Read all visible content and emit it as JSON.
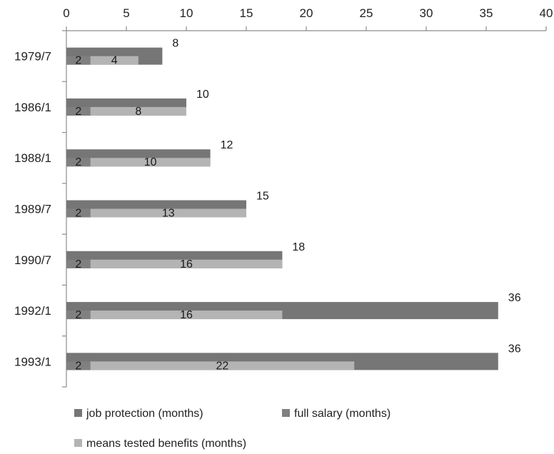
{
  "chart_data": {
    "type": "bar",
    "orientation": "horizontal",
    "categories": [
      "1979/7",
      "1986/1",
      "1988/1",
      "1989/7",
      "1990/7",
      "1992/1",
      "1993/1"
    ],
    "series": [
      {
        "name": "job protection (months)",
        "values": [
          8,
          10,
          12,
          15,
          18,
          36,
          36
        ],
        "color": "#767676"
      },
      {
        "name": "full salary (months)",
        "values": [
          2,
          2,
          2,
          2,
          2,
          2,
          2
        ],
        "color": "#808080"
      },
      {
        "name": "means tested benefits (months)",
        "values": [
          4,
          8,
          10,
          13,
          16,
          16,
          22
        ],
        "color": "#b4b4b4"
      }
    ],
    "xlim": [
      0,
      40
    ],
    "xticks": [
      0,
      5,
      10,
      15,
      20,
      25,
      30,
      35,
      40
    ],
    "x_axis_position": "top",
    "grid": false,
    "legend_position": "bottom",
    "title": "",
    "xlabel": "",
    "ylabel": ""
  }
}
